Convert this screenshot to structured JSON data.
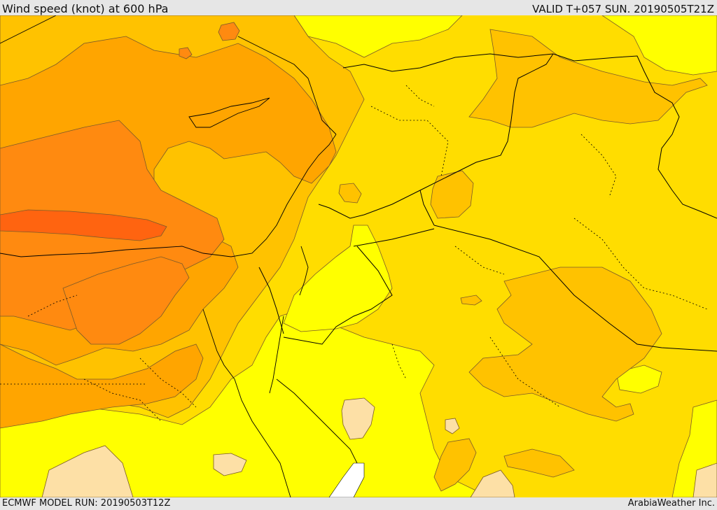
{
  "header": {
    "title": "Wind speed (knot) at 600 hPa",
    "valid": "VALID T+057 SUN. 20190505T21Z"
  },
  "footer": {
    "model_run": "ECMWF MODEL RUN: 20190503T12Z",
    "credit": "ArabiaWeather Inc."
  },
  "map": {
    "field": "wind-speed",
    "palette": {
      "lightest": "#fde0a6",
      "yellow": "#ffff00",
      "gold": "#ffdd00",
      "amber": "#ffc200",
      "orange": "#ffa500",
      "dark_orange": "#ff8a10",
      "red_orange": "#ff6410",
      "sea_no_data": "#ffffff",
      "contour_line": "#7a5a2a",
      "border_line": "#000000"
    }
  }
}
